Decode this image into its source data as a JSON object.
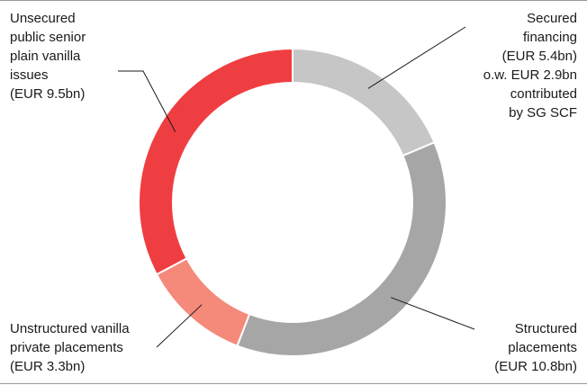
{
  "chart_data": {
    "type": "pie",
    "style": "donut",
    "unit": "EUR bn",
    "slices": [
      {
        "key": "secured",
        "value": 5.4,
        "color": "#c6c6c6",
        "label_lines": [
          "Secured",
          "financing",
          "(EUR 5.4bn)",
          "o.w. EUR 2.9bn",
          "contributed",
          "by SG SCF"
        ]
      },
      {
        "key": "structured",
        "value": 10.8,
        "color": "#a6a6a6",
        "label_lines": [
          "Structured",
          "placements",
          "(EUR 10.8bn)"
        ]
      },
      {
        "key": "unstructured",
        "value": 3.3,
        "color": "#f5897a",
        "label_lines": [
          "Unstructured vanilla",
          "private placements",
          "(EUR 3.3bn)"
        ]
      },
      {
        "key": "unsecured",
        "value": 9.5,
        "color": "#ef3e42",
        "label_lines": [
          "Unsecured",
          "public senior",
          "plain vanilla",
          "issues",
          "(EUR 9.5bn)"
        ]
      }
    ]
  }
}
